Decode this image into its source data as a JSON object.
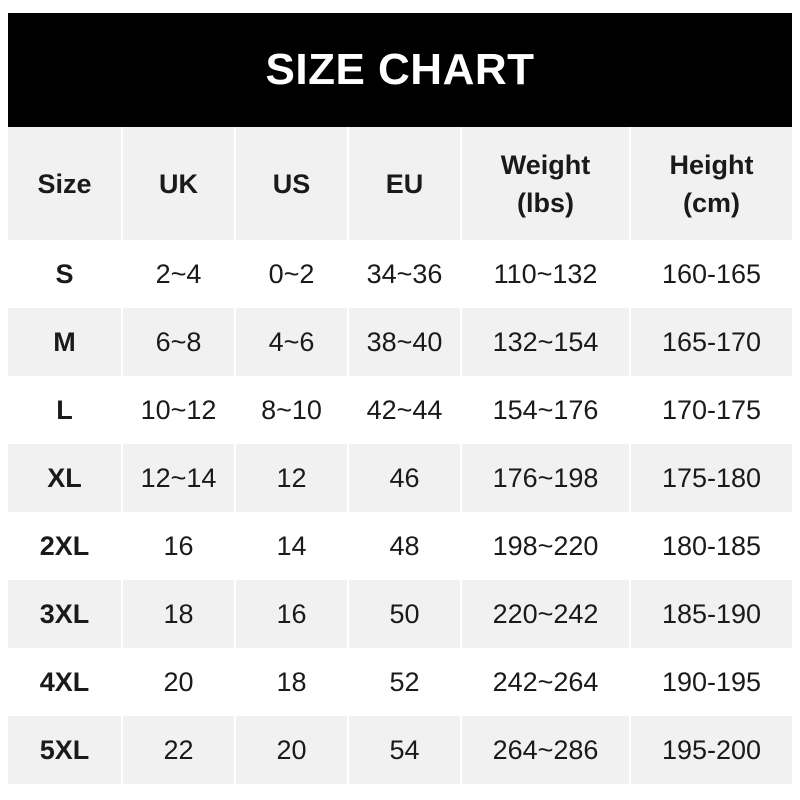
{
  "title": "SIZE CHART",
  "headers": [
    {
      "line1": "Size",
      "line2": ""
    },
    {
      "line1": "UK",
      "line2": ""
    },
    {
      "line1": "US",
      "line2": ""
    },
    {
      "line1": "EU",
      "line2": ""
    },
    {
      "line1": "Weight",
      "line2": "(lbs)"
    },
    {
      "line1": "Height",
      "line2": "(cm)"
    }
  ],
  "rows": [
    [
      "S",
      "2~4",
      "0~2",
      "34~36",
      "110~132",
      "160-165"
    ],
    [
      "M",
      "6~8",
      "4~6",
      "38~40",
      "132~154",
      "165-170"
    ],
    [
      "L",
      "10~12",
      "8~10",
      "42~44",
      "154~176",
      "170-175"
    ],
    [
      "XL",
      "12~14",
      "12",
      "46",
      "176~198",
      "175-180"
    ],
    [
      "2XL",
      "16",
      "14",
      "48",
      "198~220",
      "180-185"
    ],
    [
      "3XL",
      "18",
      "16",
      "50",
      "220~242",
      "185-190"
    ],
    [
      "4XL",
      "20",
      "18",
      "52",
      "242~264",
      "190-195"
    ],
    [
      "5XL",
      "22",
      "20",
      "54",
      "264~286",
      "195-200"
    ]
  ],
  "colors": {
    "banner": "#000000",
    "stripe": "#f1f1f1",
    "text": "#1a1a1a"
  }
}
